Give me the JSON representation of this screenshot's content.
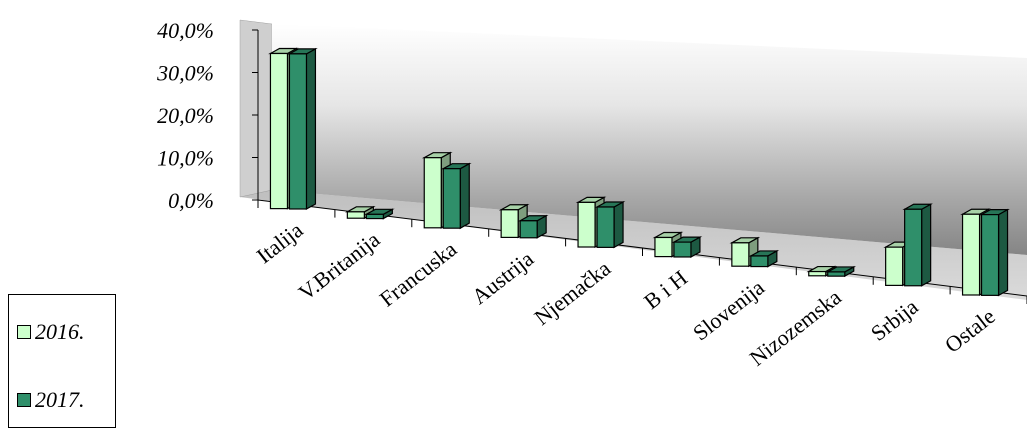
{
  "chart_data": {
    "type": "bar",
    "title": "",
    "xlabel": "",
    "ylabel": "",
    "ylim": [
      0,
      40
    ],
    "ytick_labels": [
      "40,0%",
      "30,0%",
      "20,0%",
      "10,0%",
      "0,0%"
    ],
    "ytick_values": [
      40,
      30,
      20,
      10,
      0
    ],
    "categories": [
      "Italija",
      "V.Britanija",
      "Francuska",
      "Austrija",
      "Njemačka",
      "B i H",
      "Slovenija",
      "Nizozemska",
      "Srbija",
      "Ostale"
    ],
    "series": [
      {
        "name": "2016.",
        "color": "#ccffcc",
        "values": [
          36.5,
          1.5,
          16.5,
          6.5,
          10.5,
          4.5,
          5.5,
          1.0,
          9.0,
          19.0
        ]
      },
      {
        "name": "2017.",
        "color": "#2f8f6a",
        "values": [
          36.5,
          1.0,
          14.0,
          4.0,
          9.5,
          3.5,
          2.5,
          1.0,
          18.0,
          19.0
        ]
      }
    ],
    "legend_position": "bottom-left",
    "grid": false
  }
}
